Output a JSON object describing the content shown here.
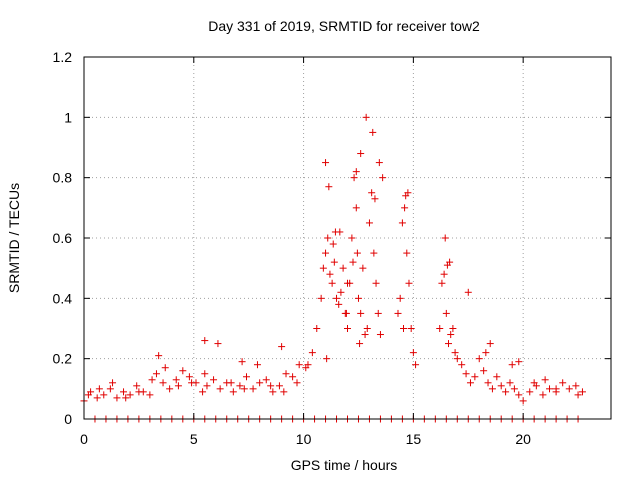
{
  "chart_data": {
    "type": "scatter",
    "title": "Day 331 of 2019, SRMTID for receiver tow2",
    "xlabel": "GPS time / hours",
    "ylabel": "SRMTID / TECUs",
    "xlim": [
      0,
      24
    ],
    "ylim": [
      0,
      1.2
    ],
    "xticks": [
      0,
      5,
      10,
      15,
      20
    ],
    "yticks": [
      0,
      0.2,
      0.4,
      0.6,
      0.8,
      1,
      1.2
    ],
    "ytick_labels": [
      "0",
      "0.2",
      "0.4",
      "0.6",
      "0.8",
      "1",
      "1.2"
    ],
    "grid": true,
    "marker": "plus",
    "series": [
      {
        "name": "SRMTID",
        "color": "#e00000",
        "x": [
          0.0,
          0.3,
          0.6,
          0.9,
          1.2,
          1.5,
          1.8,
          2.1,
          2.4,
          2.7,
          3.0,
          3.3,
          3.6,
          3.9,
          4.2,
          4.5,
          4.8,
          5.1,
          5.4,
          5.6,
          5.9,
          6.2,
          6.5,
          6.8,
          7.1,
          7.4,
          7.7,
          8.0,
          8.3,
          8.6,
          8.9,
          9.2,
          9.5,
          9.8,
          10.1,
          10.4,
          10.6,
          10.8,
          10.9,
          11.0,
          11.1,
          11.2,
          11.3,
          11.4,
          11.5,
          11.6,
          11.7,
          11.8,
          11.9,
          12.0,
          12.1,
          12.2,
          12.3,
          12.4,
          12.45,
          12.5,
          12.6,
          12.7,
          12.8,
          12.9,
          13.0,
          13.1,
          13.2,
          13.3,
          13.4,
          13.5,
          13.6,
          14.3,
          14.4,
          14.5,
          14.6,
          14.7,
          14.8,
          14.9,
          15.0,
          15.1,
          16.2,
          16.3,
          16.4,
          16.5,
          16.6,
          16.7,
          16.8,
          16.9,
          17.0,
          17.2,
          17.4,
          17.6,
          17.8,
          18.0,
          18.2,
          18.4,
          18.6,
          18.8,
          19.0,
          19.2,
          19.4,
          19.6,
          19.8,
          20.0,
          20.3,
          20.6,
          20.9,
          21.2,
          21.5,
          21.8,
          22.1,
          22.4,
          22.7,
          0.2,
          0.7,
          1.3,
          1.9,
          2.5,
          3.1,
          3.7,
          4.3,
          4.9,
          5.5,
          6.1,
          6.7,
          7.3,
          7.9,
          8.5,
          9.1,
          9.7,
          10.2,
          11.05,
          11.35,
          11.65,
          11.95,
          12.25,
          12.55,
          12.85,
          13.15,
          13.45,
          14.55,
          14.75,
          16.45,
          16.65,
          17.5,
          18.5,
          19.5,
          20.5,
          21.5,
          22.5,
          11.0,
          11.15,
          11.45,
          12.0,
          12.4,
          12.6,
          13.25,
          14.65,
          16.55,
          3.4,
          5.5,
          7.2,
          9.0,
          18.3,
          19.8,
          21.0,
          0.5,
          1.0,
          1.5,
          2.0,
          2.5,
          3.0,
          3.5,
          4.0,
          4.5,
          5.0,
          5.5,
          6.0,
          6.5,
          7.0,
          7.5,
          8.0,
          8.5,
          9.0,
          9.5,
          10.0,
          10.5,
          11.0,
          11.5,
          12.0,
          12.5,
          13.0,
          13.5,
          14.0,
          14.5,
          15.0,
          15.5,
          16.0,
          16.5,
          17.0,
          17.5,
          18.0,
          18.5,
          19.0,
          19.5,
          20.0,
          20.5,
          21.0,
          21.5,
          22.0,
          22.5
        ],
        "y": [
          0.06,
          0.09,
          0.07,
          0.08,
          0.1,
          0.07,
          0.09,
          0.08,
          0.11,
          0.09,
          0.08,
          0.15,
          0.12,
          0.1,
          0.13,
          0.16,
          0.14,
          0.12,
          0.09,
          0.11,
          0.13,
          0.1,
          0.12,
          0.09,
          0.11,
          0.14,
          0.1,
          0.12,
          0.13,
          0.09,
          0.11,
          0.15,
          0.14,
          0.18,
          0.17,
          0.22,
          0.3,
          0.4,
          0.5,
          0.55,
          0.6,
          0.48,
          0.45,
          0.52,
          0.4,
          0.38,
          0.42,
          0.5,
          0.35,
          0.3,
          0.45,
          0.6,
          0.8,
          0.7,
          0.55,
          0.4,
          0.35,
          0.5,
          0.28,
          0.3,
          0.65,
          0.75,
          0.55,
          0.45,
          0.35,
          0.28,
          0.8,
          0.35,
          0.4,
          0.65,
          0.7,
          0.55,
          0.45,
          0.3,
          0.22,
          0.18,
          0.3,
          0.45,
          0.48,
          0.35,
          0.25,
          0.28,
          0.3,
          0.22,
          0.2,
          0.18,
          0.15,
          0.12,
          0.14,
          0.2,
          0.16,
          0.12,
          0.1,
          0.14,
          0.11,
          0.09,
          0.12,
          0.1,
          0.08,
          0.06,
          0.09,
          0.11,
          0.08,
          0.1,
          0.09,
          0.12,
          0.1,
          0.11,
          0.09,
          0.08,
          0.1,
          0.12,
          0.07,
          0.09,
          0.13,
          0.17,
          0.11,
          0.12,
          0.15,
          0.25,
          0.12,
          0.1,
          0.18,
          0.11,
          0.09,
          0.12,
          0.18,
          0.2,
          0.58,
          0.62,
          0.35,
          0.52,
          0.25,
          1.0,
          0.95,
          0.85,
          0.3,
          0.75,
          0.6,
          0.52,
          0.42,
          0.25,
          0.18,
          0.12,
          0.1,
          0.08,
          0.85,
          0.77,
          0.62,
          0.45,
          0.82,
          0.88,
          0.73,
          0.74,
          0.51,
          0.21,
          0.26,
          0.19,
          0.24,
          0.22,
          0.19,
          0.13,
          0,
          0,
          0,
          0,
          0,
          0,
          0,
          0,
          0,
          0,
          0,
          0,
          0,
          0,
          0,
          0,
          0,
          0,
          0,
          0,
          0,
          0,
          0,
          0,
          0,
          0,
          0,
          0,
          0,
          0,
          0,
          0,
          0,
          0,
          0,
          0,
          0,
          0,
          0,
          0,
          0,
          0,
          0,
          0,
          0
        ]
      }
    ]
  }
}
